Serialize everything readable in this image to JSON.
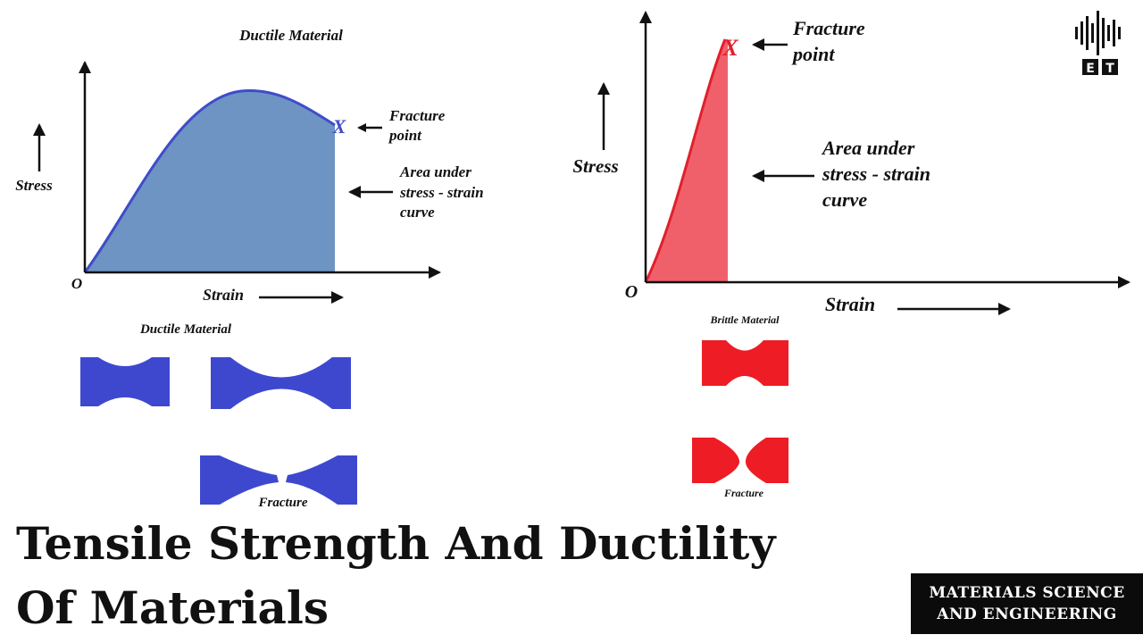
{
  "ductile": {
    "chart_title": "Ductile Material",
    "ylabel": "Stress",
    "xlabel": "Strain",
    "origin": "O",
    "fracture_marker": "X",
    "fracture_label_1": "Fracture",
    "fracture_label_2": "point",
    "area_label_1": "Area under",
    "area_label_2": "stress - strain",
    "area_label_3": "curve",
    "specimen_title": "Ductile Material",
    "fracture_caption": "Fracture",
    "fill_color": "#6d94c2",
    "curve_color": "#3f4cc9",
    "specimen_color": "#3e48cf"
  },
  "brittle": {
    "ylabel": "Stress",
    "xlabel": "Strain",
    "origin": "O",
    "fracture_marker": "X",
    "fracture_label_1": "Fracture",
    "fracture_label_2": "point",
    "area_label_1": "Area under",
    "area_label_2": "stress - strain",
    "area_label_3": "curve",
    "specimen_title": "Brittle Material",
    "fracture_caption": "Fracture",
    "fill_color": "#f0606b",
    "curve_color": "#e0202c",
    "specimen_color": "#ee1c25"
  },
  "title": {
    "line1": "Tensile Strength And Ductility",
    "line2": "Of Materials"
  },
  "badge": {
    "line1": "MATERIALS SCIENCE",
    "line2": "AND ENGINEERING"
  },
  "logo": {
    "icon": "waveform-icon",
    "letter1": "E",
    "letter2": "T"
  }
}
